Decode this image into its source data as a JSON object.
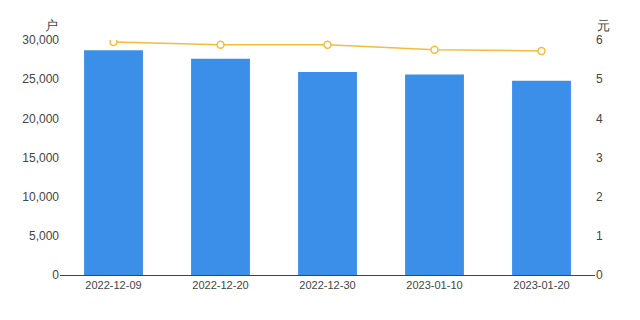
{
  "chart_data": {
    "type": "bar",
    "categories": [
      "2022-12-09",
      "2022-12-20",
      "2022-12-30",
      "2023-01-10",
      "2023-01-20"
    ],
    "series": [
      {
        "type": "bar",
        "color": "#3b8fe8",
        "values": [
          28700,
          27600,
          25900,
          25600,
          24800
        ]
      },
      {
        "type": "line",
        "axis": "y2",
        "color": "#f5bc3c",
        "marker": "circle",
        "values": [
          5.95,
          5.88,
          5.88,
          5.75,
          5.72
        ]
      }
    ],
    "ylabel": "户",
    "y2label": "元",
    "ylim": [
      0,
      30000
    ],
    "yticks": [
      0,
      {
        "value": 5000,
        "label": "5,000"
      },
      {
        "value": 10000,
        "label": "10,000"
      },
      {
        "value": 15000,
        "label": "15,000"
      },
      {
        "value": 20000,
        "label": "20,000"
      },
      {
        "value": 25000,
        "label": "25,000"
      },
      {
        "value": 30000,
        "label": "30,000"
      }
    ],
    "y2lim": [
      0,
      6
    ],
    "y2ticks": [
      0,
      1,
      2,
      3,
      4,
      5,
      6
    ],
    "grid": false
  }
}
